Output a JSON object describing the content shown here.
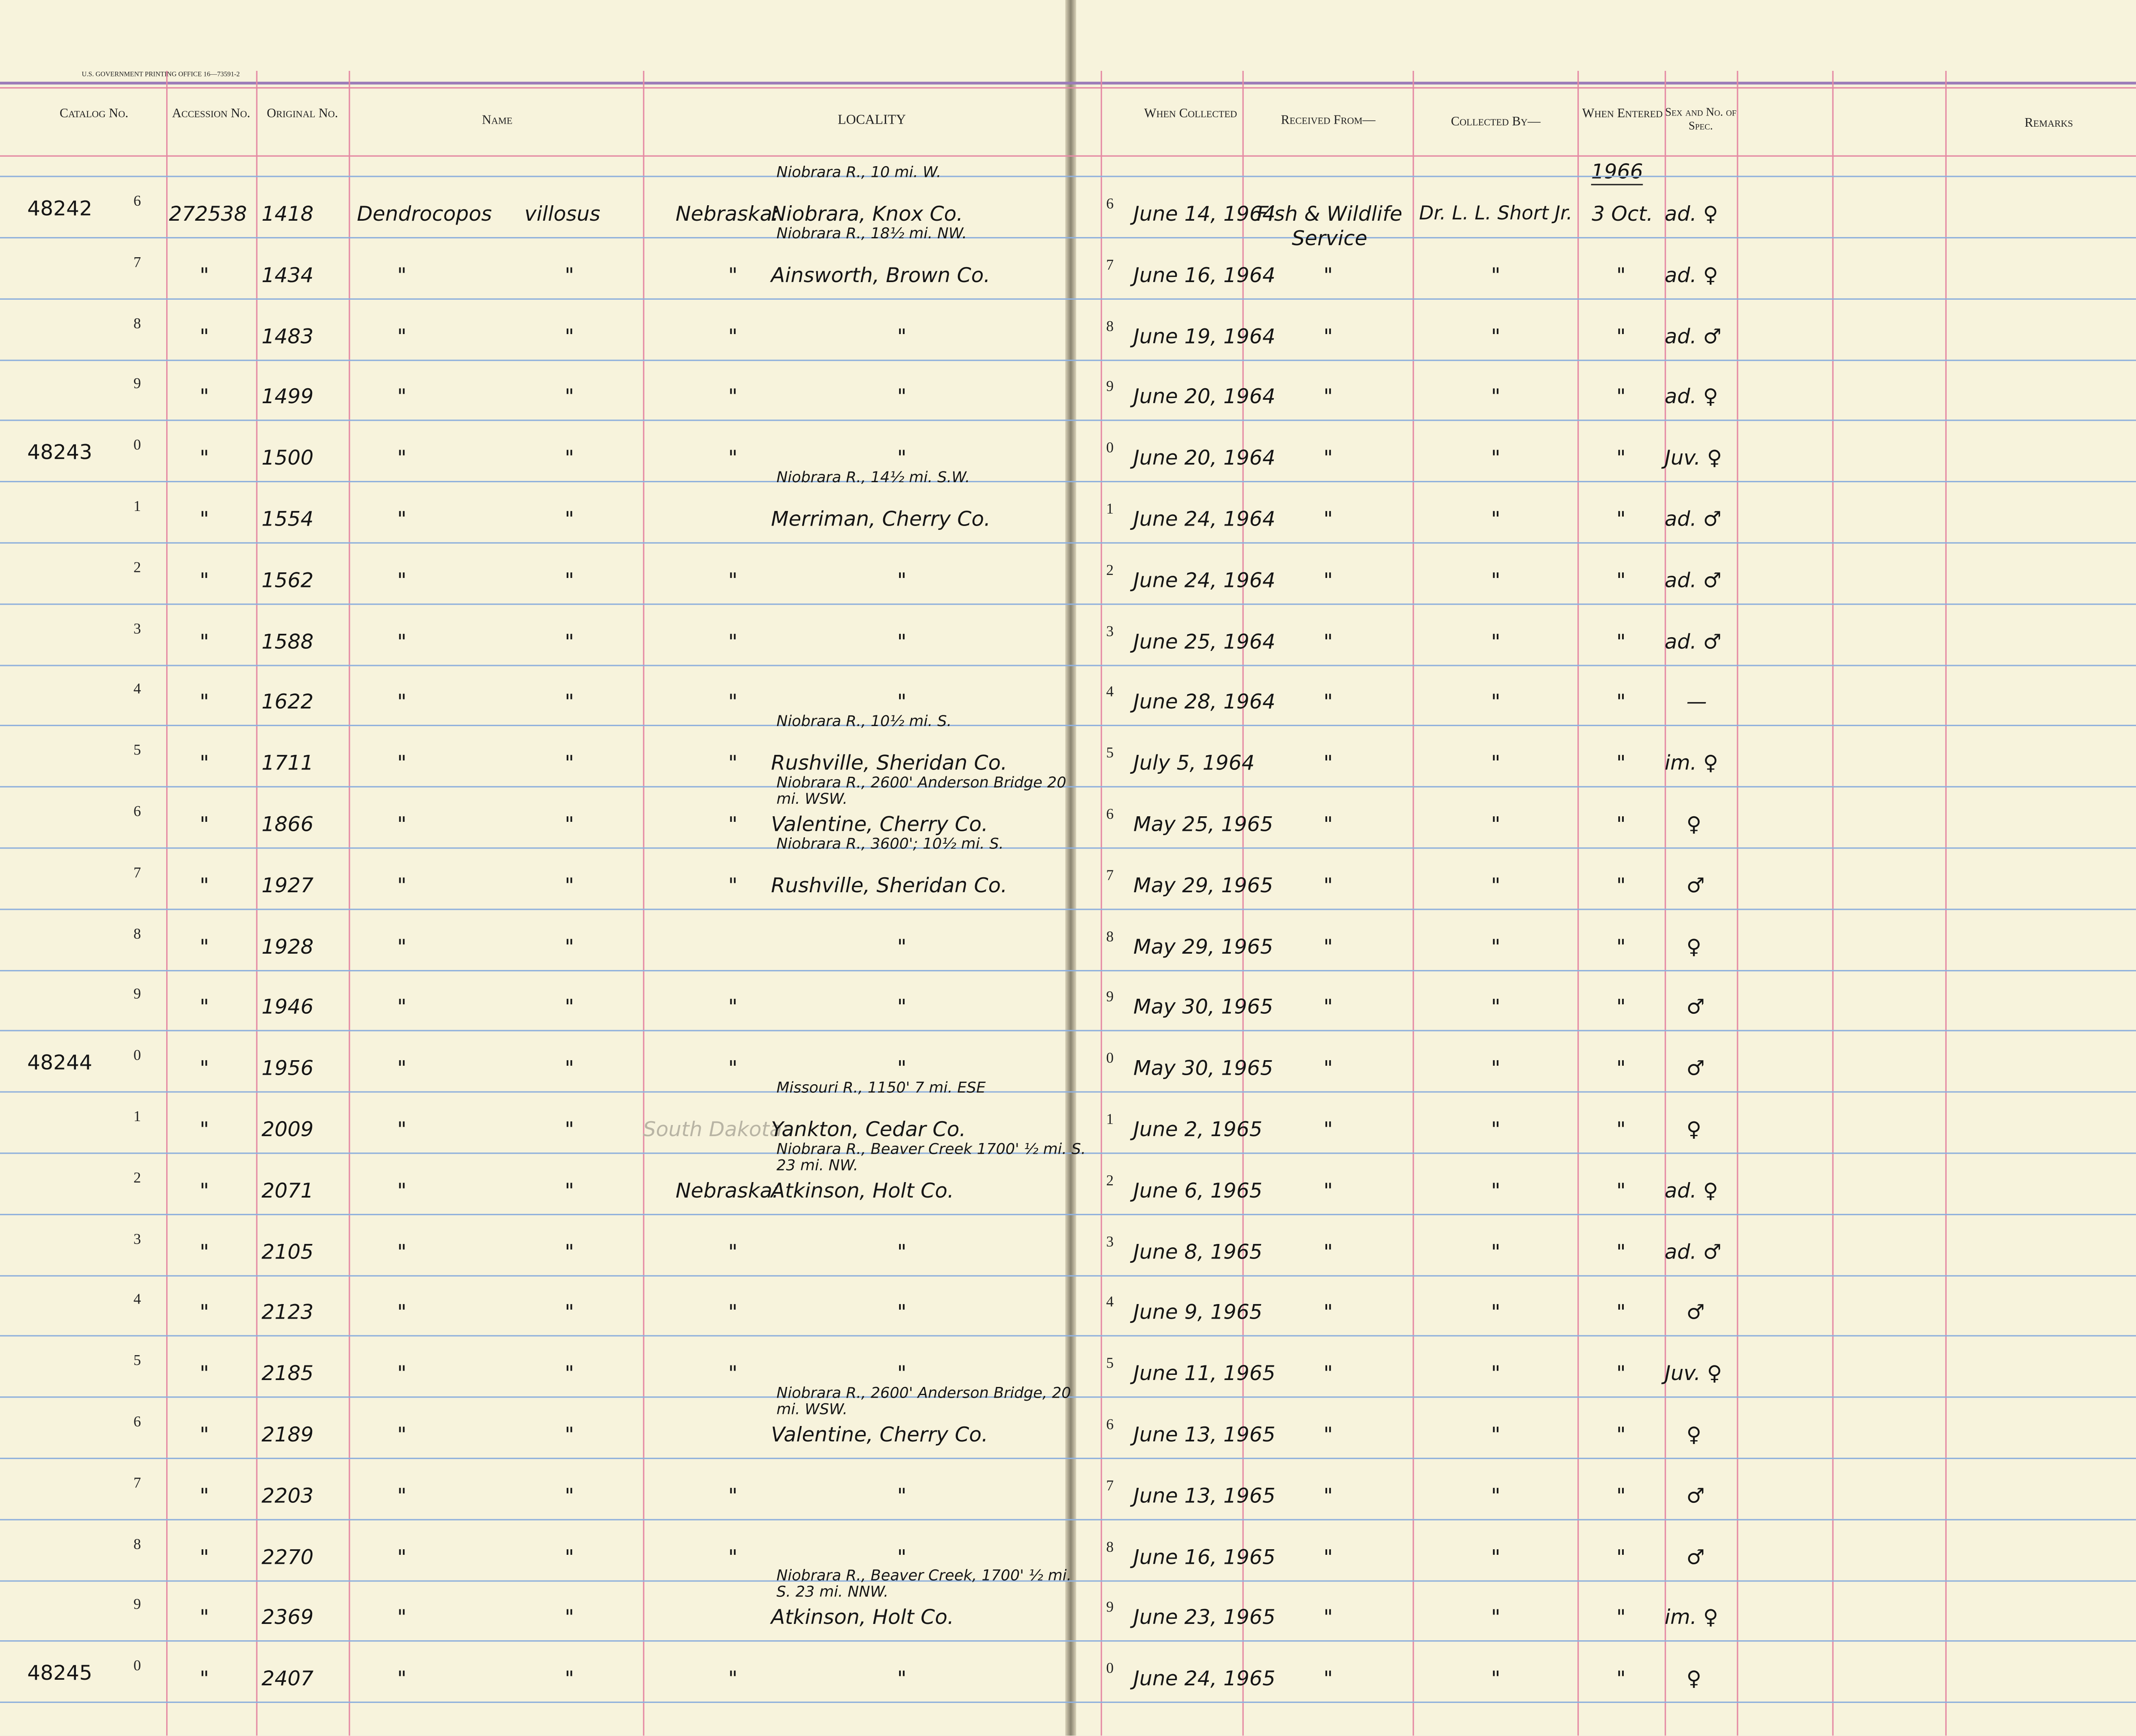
{
  "header": {
    "printer": "U.S. GOVERNMENT PRINTING OFFICE 16—73591-2",
    "columns": {
      "catalog": "Catalog No.",
      "accession": "Accession No.",
      "original": "Original No.",
      "name": "Name",
      "locality": "LOCALITY",
      "collected_when": "When Collected",
      "received": "Received From—",
      "collected_by": "Collected By—",
      "entered": "When Entered",
      "sex": "Sex and No. of Spec.",
      "remarks": "Remarks"
    }
  },
  "year_entered": "1966",
  "rows": [
    {
      "catalog": "48242",
      "line": "6",
      "accession": "272538",
      "original": "1418",
      "genus": "Dendrocopos",
      "species": "villosus",
      "locality_note": "Niobrara R., 10 mi. W.",
      "state": "Nebraska:",
      "locality": "Niobrara, Knox Co.",
      "date": "June 14, 1964",
      "received": "Fish & Wildlife Service",
      "collected": "Dr. L. L. Short Jr.",
      "entered": "3 Oct.",
      "sex": "ad. ♀"
    },
    {
      "line": "7",
      "accession": "\"",
      "original": "1434",
      "genus": "\"",
      "species": "\"",
      "locality_note": "Niobrara R., 18½ mi. NW.",
      "state": "\"",
      "locality": "Ainsworth, Brown Co.",
      "date": "June 16, 1964",
      "received": "\"",
      "collected": "\"",
      "entered": "\"",
      "sex": "ad. ♀"
    },
    {
      "line": "8",
      "accession": "\"",
      "original": "1483",
      "genus": "\"",
      "species": "\"",
      "state": "\"",
      "locality": "\"",
      "date": "June 19, 1964",
      "received": "\"",
      "collected": "\"",
      "entered": "\"",
      "sex": "ad. ♂"
    },
    {
      "line": "9",
      "accession": "\"",
      "original": "1499",
      "genus": "\"",
      "species": "\"",
      "state": "\"",
      "locality": "\"",
      "date": "June 20, 1964",
      "received": "\"",
      "collected": "\"",
      "entered": "\"",
      "sex": "ad. ♀"
    },
    {
      "catalog": "48243",
      "line": "0",
      "accession": "\"",
      "original": "1500",
      "genus": "\"",
      "species": "\"",
      "state": "\"",
      "locality": "\"",
      "date": "June 20, 1964",
      "received": "\"",
      "collected": "\"",
      "entered": "\"",
      "sex": "Juv. ♀"
    },
    {
      "line": "1",
      "accession": "\"",
      "original": "1554",
      "genus": "\"",
      "species": "\"",
      "locality_note": "Niobrara R., 14½ mi. S.W.",
      "locality": "Merriman, Cherry Co.",
      "date": "June 24, 1964",
      "received": "\"",
      "collected": "\"",
      "entered": "\"",
      "sex": "ad. ♂"
    },
    {
      "line": "2",
      "accession": "\"",
      "original": "1562",
      "genus": "\"",
      "species": "\"",
      "state": "\"",
      "locality": "\"",
      "date": "June 24, 1964",
      "received": "\"",
      "collected": "\"",
      "entered": "\"",
      "sex": "ad. ♂"
    },
    {
      "line": "3",
      "accession": "\"",
      "original": "1588",
      "genus": "\"",
      "species": "\"",
      "state": "\"",
      "locality": "\"",
      "date": "June 25, 1964",
      "received": "\"",
      "collected": "\"",
      "entered": "\"",
      "sex": "ad. ♂"
    },
    {
      "line": "4",
      "accession": "\"",
      "original": "1622",
      "genus": "\"",
      "species": "\"",
      "state": "\"",
      "locality": "\"",
      "date": "June 28, 1964",
      "received": "\"",
      "collected": "\"",
      "entered": "\"",
      "sex": "—"
    },
    {
      "line": "5",
      "accession": "\"",
      "original": "1711",
      "genus": "\"",
      "species": "\"",
      "locality_note": "Niobrara R., 10½ mi. S.",
      "state": "\"",
      "locality": "Rushville, Sheridan Co.",
      "date": "July 5, 1964",
      "received": "\"",
      "collected": "\"",
      "entered": "\"",
      "sex": "im. ♀"
    },
    {
      "line": "6",
      "accession": "\"",
      "original": "1866",
      "genus": "\"",
      "species": "\"",
      "locality_note": "Niobrara R., 2600' Anderson Bridge 20 mi. WSW.",
      "state": "\"",
      "locality": "Valentine, Cherry Co.",
      "date": "May 25, 1965",
      "received": "\"",
      "collected": "\"",
      "entered": "\"",
      "sex": "♀"
    },
    {
      "line": "7",
      "accession": "\"",
      "original": "1927",
      "genus": "\"",
      "species": "\"",
      "locality_note": "Niobrara R., 3600'; 10½ mi. S.",
      "state": "\"",
      "locality": "Rushville, Sheridan Co.",
      "date": "May 29, 1965",
      "received": "\"",
      "collected": "\"",
      "entered": "\"",
      "sex": "♂"
    },
    {
      "line": "8",
      "accession": "\"",
      "original": "1928",
      "genus": "\"",
      "species": "\"",
      "locality": "\"",
      "date": "May 29, 1965",
      "received": "\"",
      "collected": "\"",
      "entered": "\"",
      "sex": "♀"
    },
    {
      "line": "9",
      "accession": "\"",
      "original": "1946",
      "genus": "\"",
      "species": "\"",
      "state": "\"",
      "locality": "\"",
      "date": "May 30, 1965",
      "received": "\"",
      "collected": "\"",
      "entered": "\"",
      "sex": "♂"
    },
    {
      "catalog": "48244",
      "line": "0",
      "accession": "\"",
      "original": "1956",
      "genus": "\"",
      "species": "\"",
      "state": "\"",
      "locality": "\"",
      "date": "May 30, 1965",
      "received": "\"",
      "collected": "\"",
      "entered": "\"",
      "sex": "♂"
    },
    {
      "line": "1",
      "accession": "\"",
      "original": "2009",
      "genus": "\"",
      "species": "\"",
      "locality_note": "Missouri R., 1150' 7 mi. ESE",
      "state": "South Dakota:",
      "locality": "Yankton, Cedar Co.",
      "date": "June 2, 1965",
      "received": "\"",
      "collected": "\"",
      "entered": "\"",
      "sex": "♀"
    },
    {
      "line": "2",
      "accession": "\"",
      "original": "2071",
      "genus": "\"",
      "species": "\"",
      "locality_note": "Niobrara R., Beaver Creek 1700' ½ mi. S. 23 mi. NW.",
      "state": "Nebraska:",
      "locality": "Atkinson, Holt Co.",
      "date": "June 6, 1965",
      "received": "\"",
      "collected": "\"",
      "entered": "\"",
      "sex": "ad. ♀"
    },
    {
      "line": "3",
      "accession": "\"",
      "original": "2105",
      "genus": "\"",
      "species": "\"",
      "state": "\"",
      "locality": "\"",
      "date": "June 8, 1965",
      "received": "\"",
      "collected": "\"",
      "entered": "\"",
      "sex": "ad. ♂"
    },
    {
      "line": "4",
      "accession": "\"",
      "original": "2123",
      "genus": "\"",
      "species": "\"",
      "state": "\"",
      "locality": "\"",
      "date": "June 9, 1965",
      "received": "\"",
      "collected": "\"",
      "entered": "\"",
      "sex": "♂"
    },
    {
      "line": "5",
      "accession": "\"",
      "original": "2185",
      "genus": "\"",
      "species": "\"",
      "state": "\"",
      "locality": "\"",
      "date": "June 11, 1965",
      "received": "\"",
      "collected": "\"",
      "entered": "\"",
      "sex": "Juv. ♀"
    },
    {
      "line": "6",
      "accession": "\"",
      "original": "2189",
      "genus": "\"",
      "species": "\"",
      "locality_note": "Niobrara R., 2600' Anderson Bridge, 20 mi. WSW.",
      "locality": "Valentine, Cherry Co.",
      "date": "June 13, 1965",
      "received": "\"",
      "collected": "\"",
      "entered": "\"",
      "sex": "♀"
    },
    {
      "line": "7",
      "accession": "\"",
      "original": "2203",
      "genus": "\"",
      "species": "\"",
      "state": "\"",
      "locality": "\"",
      "date": "June 13, 1965",
      "received": "\"",
      "collected": "\"",
      "entered": "\"",
      "sex": "♂"
    },
    {
      "line": "8",
      "accession": "\"",
      "original": "2270",
      "genus": "\"",
      "species": "\"",
      "state": "\"",
      "locality": "\"",
      "date": "June 16, 1965",
      "received": "\"",
      "collected": "\"",
      "entered": "\"",
      "sex": "♂"
    },
    {
      "line": "9",
      "accession": "\"",
      "original": "2369",
      "genus": "\"",
      "species": "\"",
      "locality_note": "Niobrara R., Beaver Creek, 1700' ½ mi. S. 23 mi. NNW.",
      "locality": "Atkinson, Holt Co.",
      "date": "June 23, 1965",
      "received": "\"",
      "collected": "\"",
      "entered": "\"",
      "sex": "im. ♀"
    },
    {
      "catalog": "48245",
      "line": "0",
      "accession": "\"",
      "original": "2407",
      "genus": "\"",
      "species": "\"",
      "state": "\"",
      "locality": "\"",
      "date": "June 24, 1965",
      "received": "\"",
      "collected": "\"",
      "entered": "\"",
      "sex": "♀"
    }
  ]
}
